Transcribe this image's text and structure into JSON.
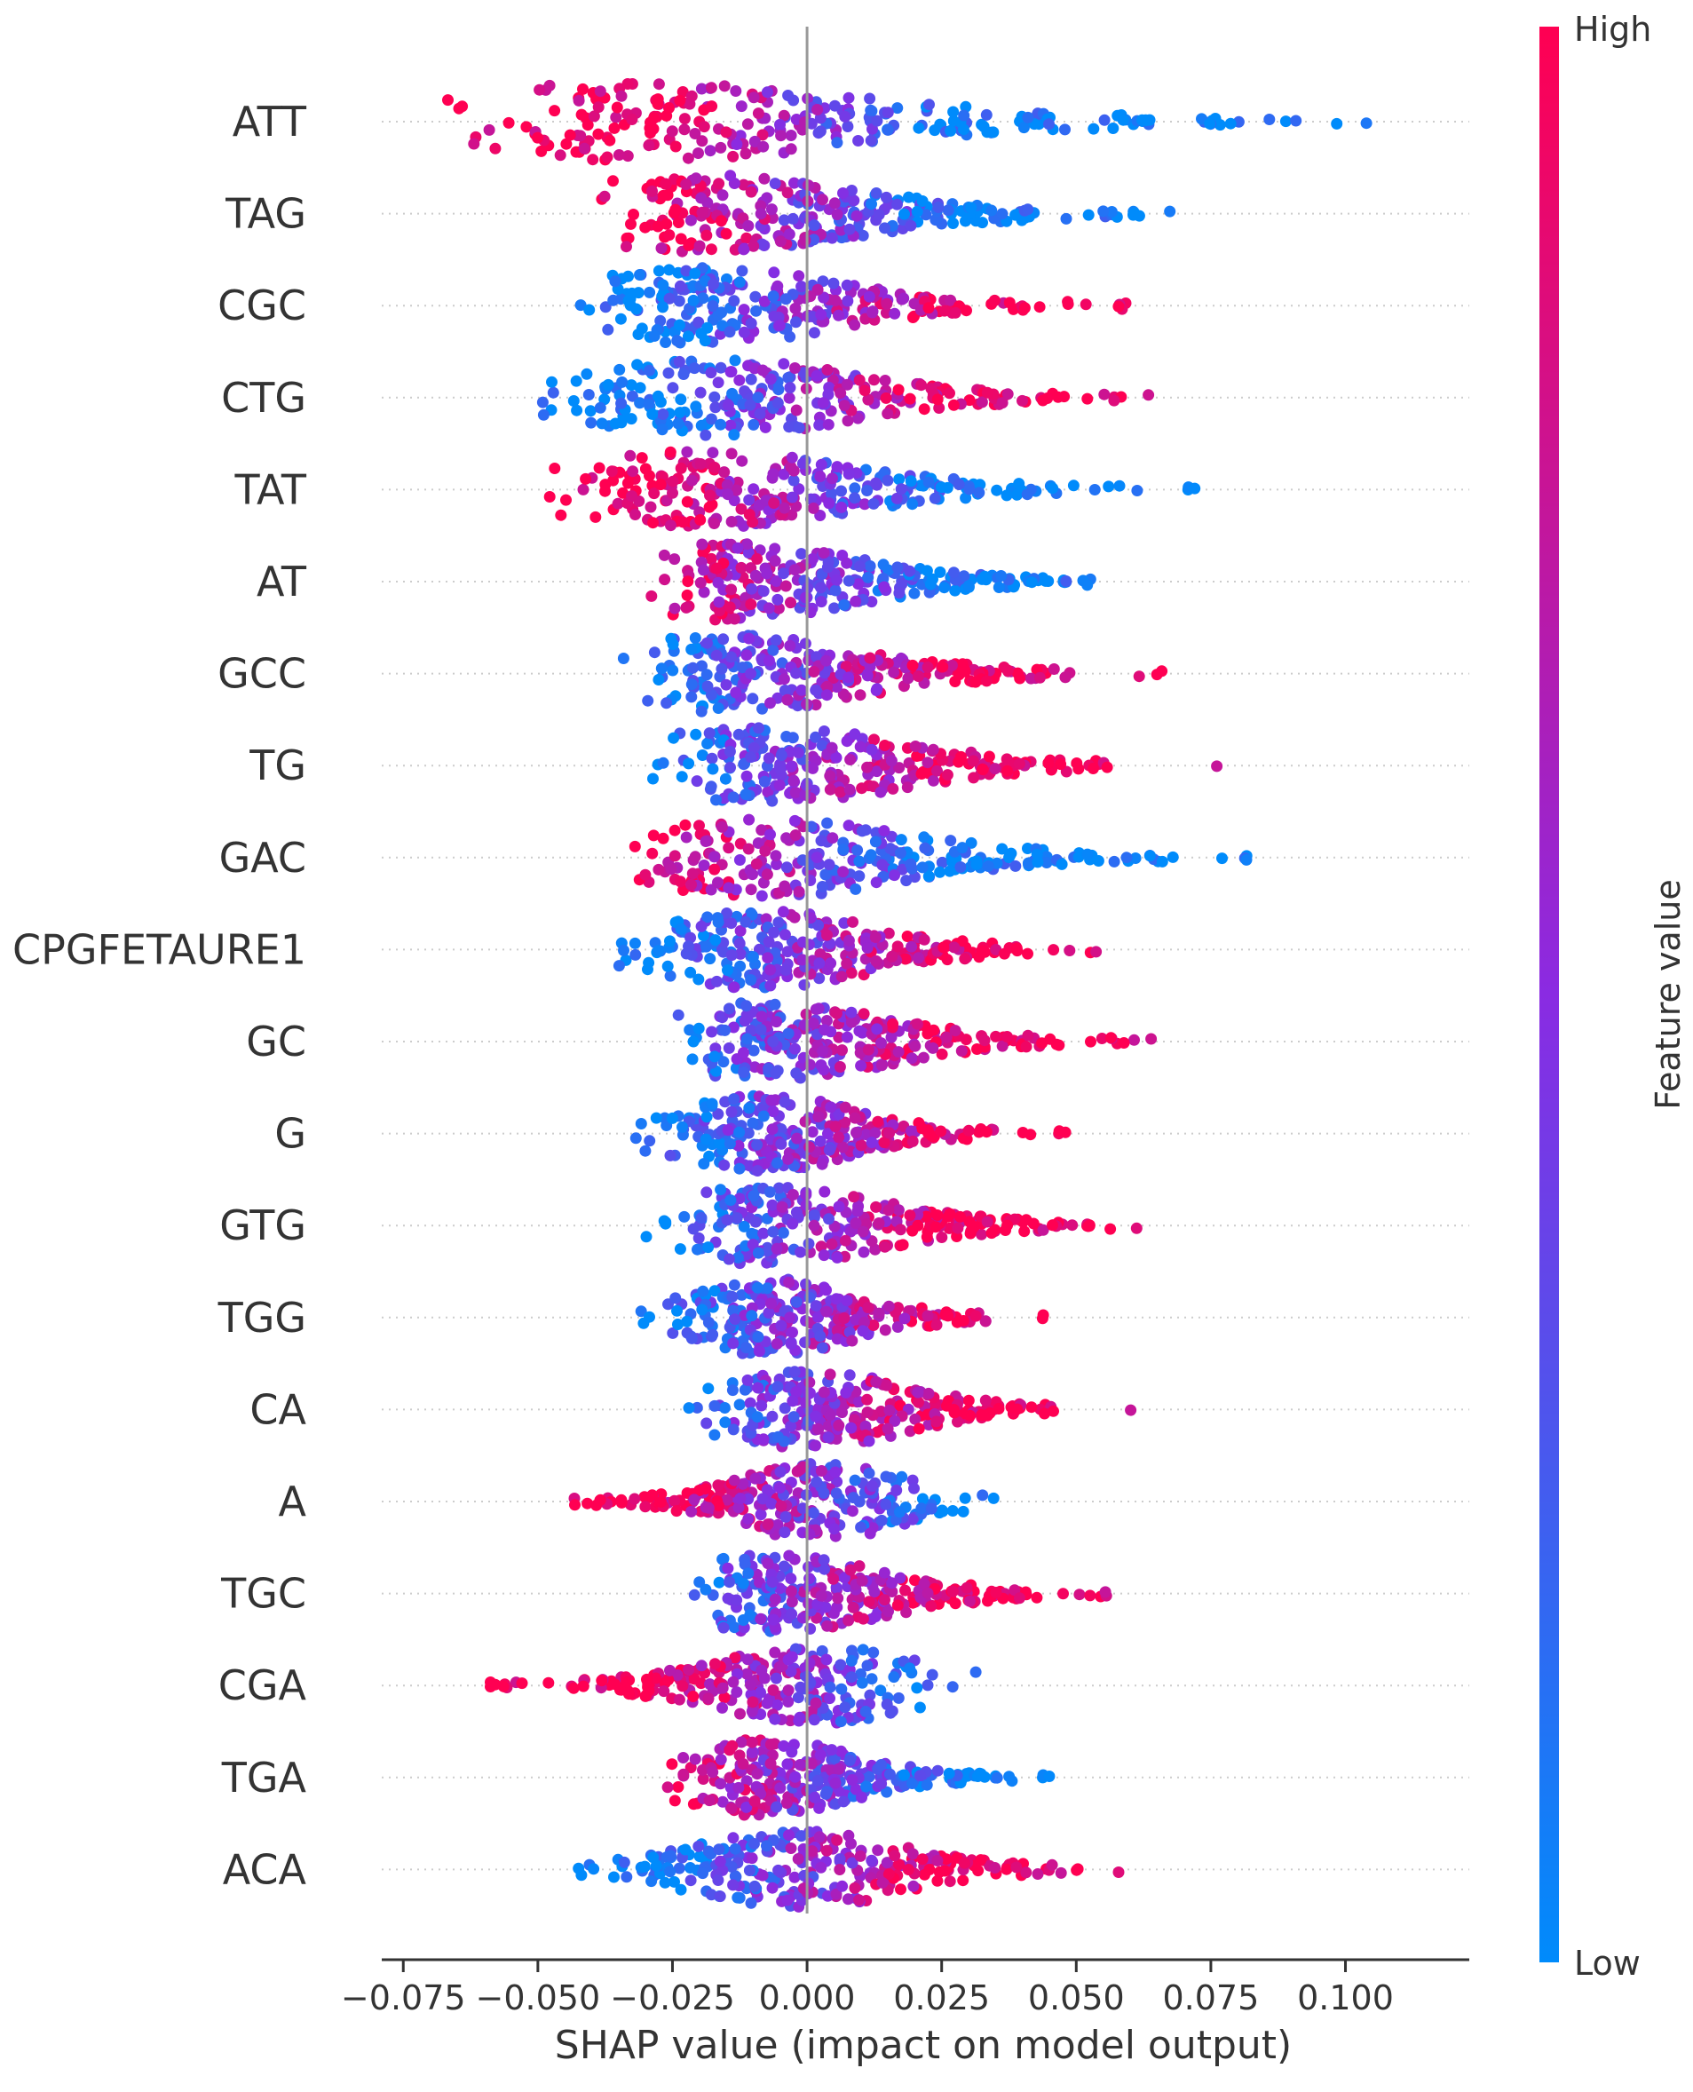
{
  "chart_data": {
    "type": "scatter",
    "subtype": "shap-beeswarm",
    "title": "",
    "xlabel": "SHAP value (impact on model output)",
    "ylabel": "",
    "xlim": [
      -0.079,
      0.123
    ],
    "xticks": [
      -0.075,
      -0.05,
      -0.025,
      0.0,
      0.025,
      0.05,
      0.075,
      0.1
    ],
    "xtick_labels": [
      "−0.075",
      "−0.050",
      "−0.025",
      "0.000",
      "0.025",
      "0.050",
      "0.075",
      "0.100"
    ],
    "zero_line": true,
    "colorbar": {
      "title": "Feature value",
      "high_label": "High",
      "low_label": "Low",
      "high_color": "#ff0052",
      "mid_color": "#8a2be2",
      "low_color": "#008bfb"
    },
    "features": [
      {
        "name": "ATT",
        "min": -0.07,
        "max": 0.114,
        "peak": -0.034,
        "neg_value": "high",
        "pos_value": "low"
      },
      {
        "name": "TAG",
        "min": -0.04,
        "max": 0.077,
        "peak": -0.02,
        "neg_value": "high",
        "pos_value": "low"
      },
      {
        "name": "CGC",
        "min": -0.043,
        "max": 0.06,
        "peak": -0.019,
        "neg_value": "low",
        "pos_value": "high"
      },
      {
        "name": "CTG",
        "min": -0.05,
        "max": 0.068,
        "peak": -0.017,
        "neg_value": "low",
        "pos_value": "high"
      },
      {
        "name": "TAT",
        "min": -0.048,
        "max": 0.072,
        "peak": -0.02,
        "neg_value": "high",
        "pos_value": "low"
      },
      {
        "name": "AT",
        "min": -0.029,
        "max": 0.062,
        "peak": -0.014,
        "neg_value": "high",
        "pos_value": "low"
      },
      {
        "name": "GCC",
        "min": -0.035,
        "max": 0.067,
        "peak": -0.015,
        "neg_value": "low",
        "pos_value": "high"
      },
      {
        "name": "TG",
        "min": -0.03,
        "max": 0.077,
        "peak": -0.008,
        "neg_value": "low",
        "pos_value": "high"
      },
      {
        "name": "GAC",
        "min": -0.037,
        "max": 0.082,
        "peak": -0.008,
        "neg_value": "high",
        "pos_value": "low"
      },
      {
        "name": "CPGFETAURE1",
        "min": -0.038,
        "max": 0.06,
        "peak": -0.008,
        "neg_value": "low",
        "pos_value": "high"
      },
      {
        "name": "GC",
        "min": -0.025,
        "max": 0.068,
        "peak": -0.008,
        "neg_value": "low",
        "pos_value": "high"
      },
      {
        "name": "G",
        "min": -0.032,
        "max": 0.048,
        "peak": -0.008,
        "neg_value": "low",
        "pos_value": "high"
      },
      {
        "name": "GTG",
        "min": -0.03,
        "max": 0.066,
        "peak": -0.008,
        "neg_value": "low",
        "pos_value": "high"
      },
      {
        "name": "TGG",
        "min": -0.032,
        "max": 0.045,
        "peak": -0.006,
        "neg_value": "low",
        "pos_value": "high"
      },
      {
        "name": "CA",
        "min": -0.024,
        "max": 0.061,
        "peak": 0.0,
        "neg_value": "low",
        "pos_value": "high"
      },
      {
        "name": "A",
        "min": -0.044,
        "max": 0.035,
        "peak": 0.003,
        "neg_value": "high",
        "pos_value": "low"
      },
      {
        "name": "TGC",
        "min": -0.023,
        "max": 0.062,
        "peak": -0.007,
        "neg_value": "low",
        "pos_value": "high"
      },
      {
        "name": "CGA",
        "min": -0.059,
        "max": 0.032,
        "peak": 0.003,
        "neg_value": "high",
        "pos_value": "low"
      },
      {
        "name": "TGA",
        "min": -0.026,
        "max": 0.045,
        "peak": -0.008,
        "neg_value": "high",
        "pos_value": "low"
      },
      {
        "name": "ACA",
        "min": -0.05,
        "max": 0.062,
        "peak": -0.002,
        "neg_value": "low",
        "pos_value": "high"
      }
    ]
  }
}
